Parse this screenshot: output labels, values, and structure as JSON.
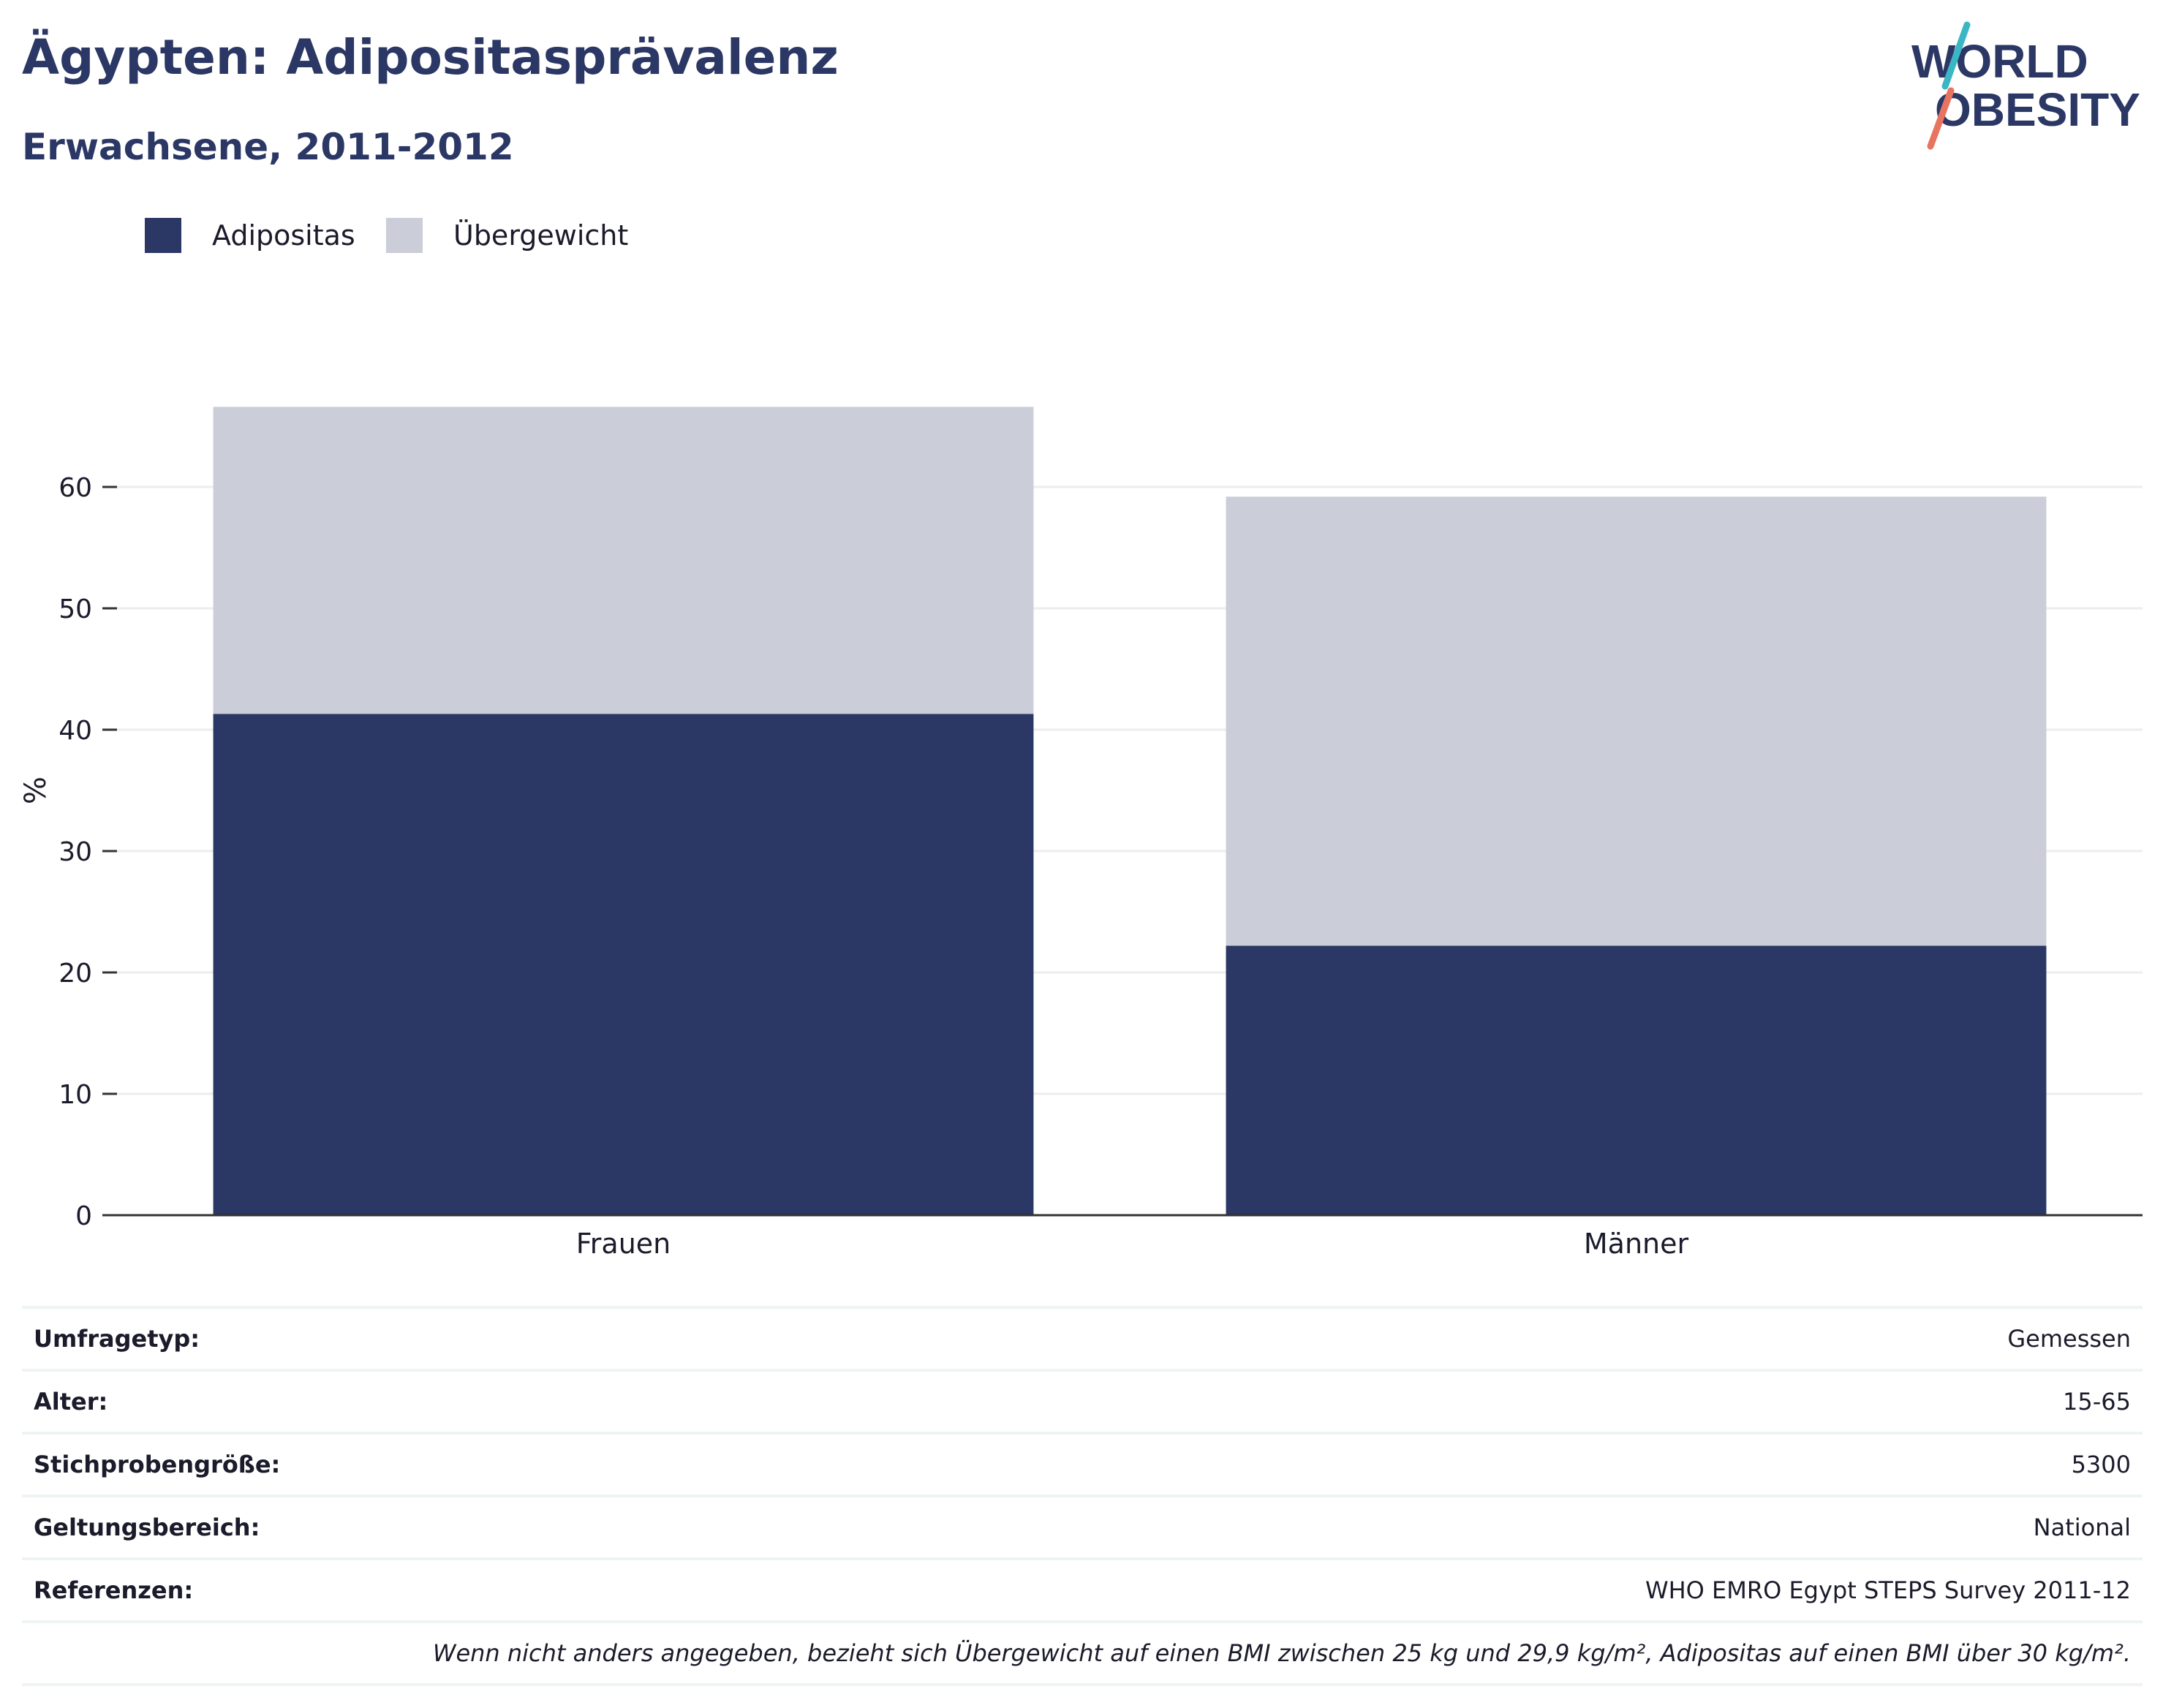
{
  "header": {
    "title": "Ägypten: Adipositasprävalenz",
    "subtitle": "Erwachsene, 2011-2012"
  },
  "logo": {
    "line1": "WORLD",
    "line2": "OBESITY",
    "colors": {
      "text": "#2b3764",
      "accent_teal": "#3bb6c4",
      "accent_coral": "#e8735f"
    }
  },
  "colors": {
    "adipositas": "#2b3764",
    "uebergewicht": "#cbcdd8",
    "grid": "#ecedf0",
    "axis": "#333333"
  },
  "chart_data": {
    "type": "bar",
    "stacked": true,
    "categories": [
      "Frauen",
      "Männer"
    ],
    "series": [
      {
        "name": "Adipositas",
        "values": [
          41.3,
          22.2
        ]
      },
      {
        "name": "Übergewicht",
        "values": [
          25.3,
          37.0
        ]
      }
    ],
    "ylabel": "%",
    "xlabel": "",
    "ylim": [
      0,
      70
    ],
    "yticks": [
      0,
      10,
      20,
      30,
      40,
      50,
      60
    ],
    "grid": true,
    "legend_position": "top-left"
  },
  "info": {
    "rows": [
      {
        "label": "Umfragetyp:",
        "value": "Gemessen"
      },
      {
        "label": "Alter:",
        "value": "15-65"
      },
      {
        "label": "Stichprobengröße:",
        "value": "5300"
      },
      {
        "label": "Geltungsbereich:",
        "value": "National"
      },
      {
        "label": "Referenzen:",
        "value": "WHO EMRO Egypt STEPS Survey 2011-12"
      }
    ],
    "note": "Wenn nicht anders angegeben, bezieht sich Übergewicht auf einen BMI zwischen 25 kg und 29,9 kg/m², Adipositas auf einen BMI über 30 kg/m²."
  }
}
